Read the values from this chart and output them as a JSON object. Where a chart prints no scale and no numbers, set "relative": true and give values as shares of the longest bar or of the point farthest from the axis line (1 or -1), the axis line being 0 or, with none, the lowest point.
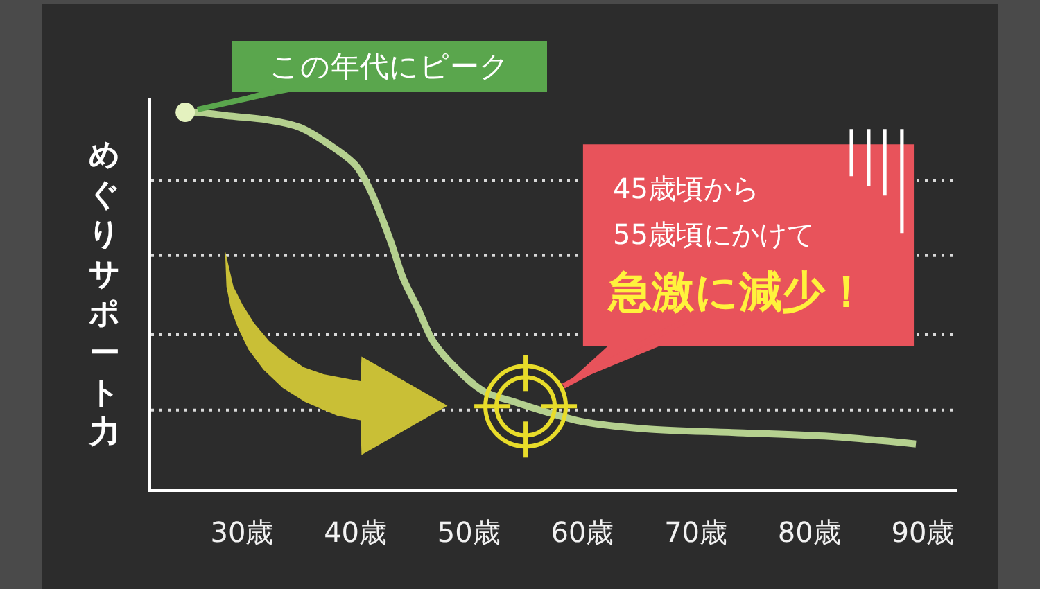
{
  "chart_data": {
    "type": "line",
    "relative": true,
    "ylabel": "めぐりサポート力",
    "x": [
      25,
      26,
      29,
      32.2,
      35.1,
      37.9,
      40,
      41.2,
      42.2,
      43.2,
      44.2,
      45.5,
      46.9,
      48.9,
      51.3,
      54.2,
      57.4,
      59.9,
      65.6,
      73.7,
      81.8,
      89.4
    ],
    "series": [
      {
        "color": "#b5d08f",
        "values": [
          1,
          1,
          0.99,
          0.98,
          0.96,
          0.91,
          0.86,
          0.8,
          0.73,
          0.65,
          0.56,
          0.48,
          0.39,
          0.32,
          0.26,
          0.23,
          0.2,
          0.18,
          0.16,
          0.15,
          0.14,
          0.12
        ]
      }
    ],
    "xlim": [
      22,
      93
    ],
    "xticks": [
      {
        "value": 30,
        "label": "30歳"
      },
      {
        "value": 40,
        "label": "40歳"
      },
      {
        "value": 50,
        "label": "50歳"
      },
      {
        "value": 60,
        "label": "60歳"
      },
      {
        "value": 70,
        "label": "70歳"
      },
      {
        "value": 80,
        "label": "80歳"
      },
      {
        "value": 90,
        "label": "90歳"
      }
    ],
    "ref_lines": [
      {
        "axis": "y",
        "value": 0.21,
        "color": "#d9d9d9",
        "line_style": "dotted"
      },
      {
        "axis": "y",
        "value": 0.41,
        "color": "#d9d9d9",
        "line_style": "dotted"
      },
      {
        "axis": "y",
        "value": 0.62,
        "color": "#d9d9d9",
        "line_style": "dotted"
      },
      {
        "axis": "y",
        "value": 0.82,
        "color": "#d9d9d9",
        "line_style": "dotted"
      }
    ],
    "annotations": [
      {
        "text": "この年代にピーク",
        "x": 25,
        "y": 1
      },
      "45歳頃から",
      "55歳頃にかけて",
      {
        "text": "急激に減少！",
        "x": 55,
        "y": 0.22
      }
    ],
    "grid": false,
    "marker": "none",
    "line_style": "solid"
  }
}
